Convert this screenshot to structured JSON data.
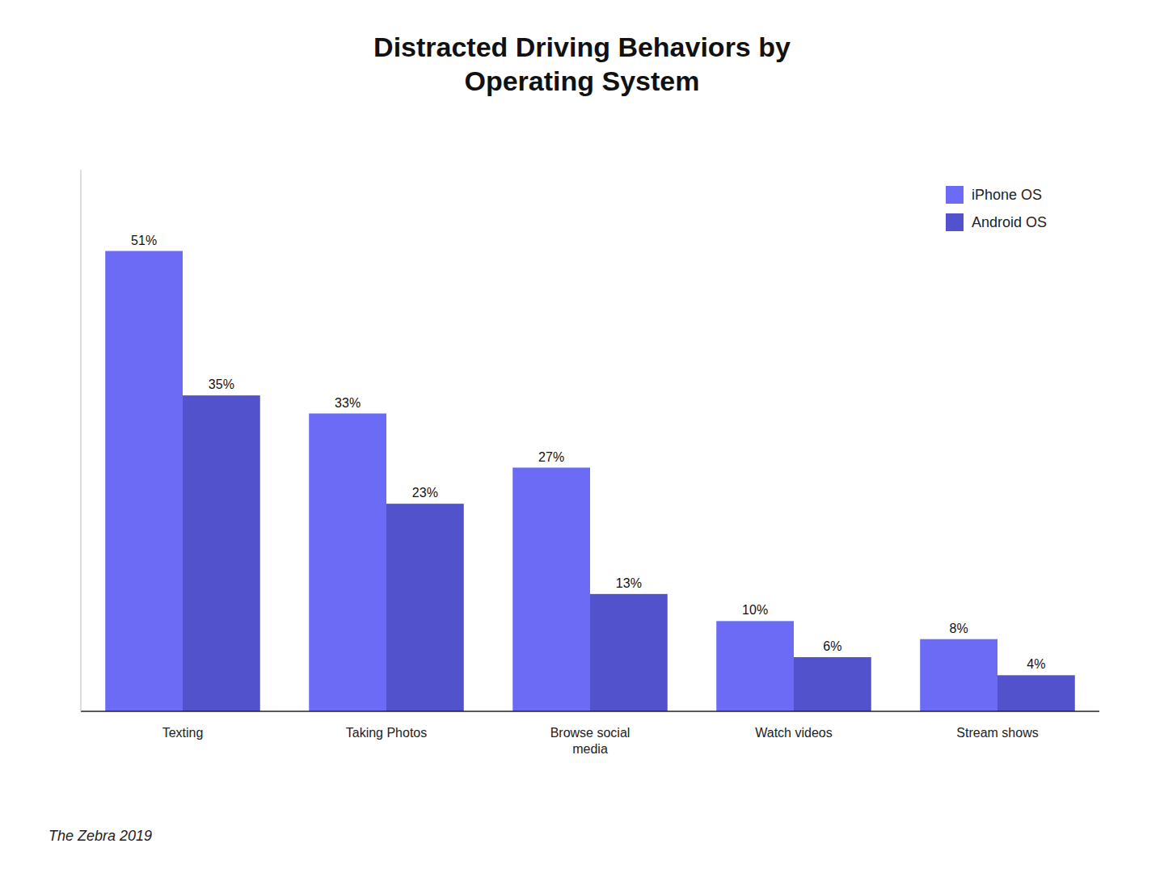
{
  "chart_data": {
    "type": "bar",
    "title": "Distracted Driving Behaviors by\nOperating System",
    "categories": [
      "Texting",
      "Taking Photos",
      "Browse social\nmedia",
      "Watch videos",
      "Stream shows"
    ],
    "series": [
      {
        "name": "iPhone OS",
        "color": "#6B6BF5",
        "values": [
          51,
          33,
          27,
          10,
          8
        ],
        "value_labels": [
          "51%",
          "33%",
          "27%",
          "10%",
          "8%"
        ]
      },
      {
        "name": "Android OS",
        "color": "#5252CC",
        "values": [
          35,
          23,
          13,
          6,
          4
        ],
        "value_labels": [
          "35%",
          "23%",
          "13%",
          "6%",
          "4%"
        ]
      }
    ],
    "ylim": [
      0,
      60
    ],
    "grid": false,
    "legend": "upper right",
    "data_labels": true,
    "tick_labels": "x",
    "annotations": [
      "The Zebra 2019"
    ]
  }
}
